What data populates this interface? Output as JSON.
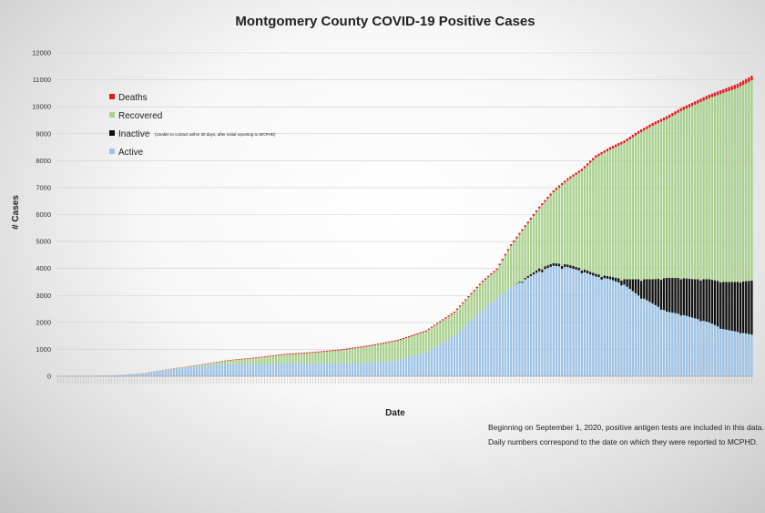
{
  "chart_data": {
    "type": "stacked-bar",
    "title": "Montgomery County COVID-19 Positive Cases",
    "xlabel": "Date",
    "ylabel": "# Cases",
    "ylim": [
      0,
      12000
    ],
    "yticks": [
      0,
      1000,
      2000,
      3000,
      4000,
      5000,
      6000,
      7000,
      8000,
      9000,
      10000,
      11000,
      12000
    ],
    "grid": true,
    "legend_position": "top-left",
    "legend": [
      {
        "name": "Deaths",
        "color": "#e31a1c",
        "note": ""
      },
      {
        "name": "Recovered",
        "color": "#a9d18e",
        "note": ""
      },
      {
        "name": "Inactive",
        "color": "#111111",
        "note": "(Unable to contact within 30 days, after initial reporting to MCPHD)"
      },
      {
        "name": "Active",
        "color": "#9dc3e6",
        "note": ""
      }
    ],
    "notes": [
      "Beginning on September 1, 2020, positive antigen tests are included in this data.",
      "Daily numbers correspond to the date on which they were reported to MCPHD."
    ],
    "bar_count": 246,
    "series_keyframes": {
      "index": [
        0,
        10,
        20,
        30,
        40,
        50,
        60,
        70,
        80,
        90,
        100,
        110,
        120,
        130,
        140,
        150,
        155,
        160,
        165,
        170,
        175,
        180,
        185,
        190,
        195,
        200,
        205,
        210,
        215,
        220,
        225,
        230,
        235,
        240,
        245
      ],
      "total": [
        5,
        15,
        40,
        120,
        280,
        430,
        600,
        700,
        830,
        900,
        1000,
        1150,
        1350,
        1700,
        2400,
        3550,
        4000,
        4900,
        5600,
        6300,
        6900,
        7350,
        7700,
        8200,
        8500,
        8750,
        9100,
        9400,
        9650,
        9950,
        10200,
        10450,
        10650,
        10850,
        11150
      ],
      "active": [
        5,
        15,
        38,
        115,
        260,
        380,
        450,
        450,
        480,
        470,
        480,
        500,
        600,
        900,
        1500,
        2500,
        2900,
        3300,
        3600,
        3900,
        4100,
        4050,
        3900,
        3700,
        3600,
        3400,
        3000,
        2700,
        2400,
        2300,
        2150,
        2000,
        1750,
        1650,
        1550
      ],
      "inactive": [
        0,
        0,
        0,
        0,
        0,
        0,
        0,
        0,
        0,
        0,
        0,
        0,
        0,
        0,
        0,
        0,
        0,
        0,
        50,
        100,
        100,
        100,
        100,
        100,
        100,
        200,
        600,
        900,
        1250,
        1350,
        1450,
        1600,
        1750,
        1850,
        2000
      ],
      "deaths": [
        0,
        0,
        1,
        3,
        8,
        14,
        20,
        25,
        29,
        31,
        33,
        35,
        37,
        40,
        44,
        50,
        54,
        58,
        63,
        68,
        73,
        78,
        83,
        88,
        92,
        95,
        100,
        105,
        110,
        115,
        120,
        130,
        140,
        155,
        170
      ]
    }
  }
}
